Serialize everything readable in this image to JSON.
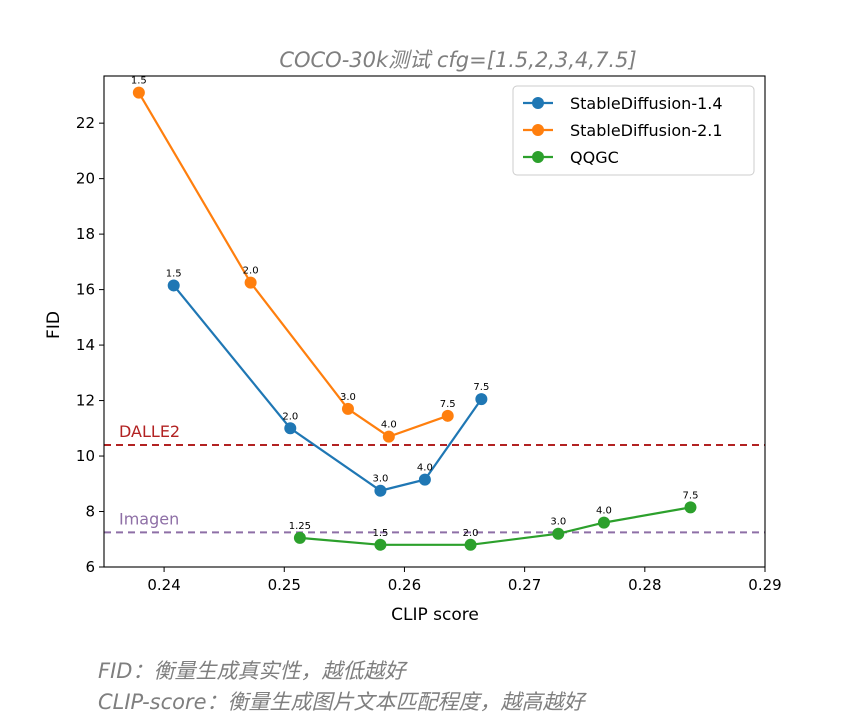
{
  "chart_data": {
    "type": "line",
    "title": "COCO-30k测试  cfg=[1.5,2,3,4,7.5]",
    "xlabel": "CLIP score",
    "ylabel": "FID",
    "xlim": [
      0.235,
      0.29
    ],
    "ylim": [
      6,
      23.7
    ],
    "xticks": [
      0.24,
      0.25,
      0.26,
      0.27,
      0.28,
      0.29
    ],
    "xtick_labels": [
      "0.24",
      "0.25",
      "0.26",
      "0.27",
      "0.28",
      "0.29"
    ],
    "yticks": [
      6,
      8,
      10,
      12,
      14,
      16,
      18,
      20,
      22
    ],
    "ytick_labels": [
      "6",
      "8",
      "10",
      "12",
      "14",
      "16",
      "18",
      "20",
      "22"
    ],
    "grid": false,
    "legend_position": "top-right",
    "series": [
      {
        "name": "StableDiffusion-1.4",
        "color": "#1f77b4",
        "x": [
          0.2408,
          0.2505,
          0.258,
          0.2617,
          0.2664
        ],
        "y": [
          16.15,
          11.0,
          8.75,
          9.15,
          12.05
        ],
        "labels": [
          "1.5",
          "2.0",
          "3.0",
          "4.0",
          "7.5"
        ]
      },
      {
        "name": "StableDiffusion-2.1",
        "color": "#ff7f0e",
        "x": [
          0.2379,
          0.2472,
          0.2553,
          0.2587,
          0.2636
        ],
        "y": [
          23.1,
          16.25,
          11.7,
          10.7,
          11.45
        ],
        "labels": [
          "1.5",
          "2.0",
          "3.0",
          "4.0",
          "7.5"
        ]
      },
      {
        "name": "QQGC",
        "color": "#2ca02c",
        "x": [
          0.2513,
          0.258,
          0.2655,
          0.2728,
          0.2766,
          0.2838
        ],
        "y": [
          7.05,
          6.8,
          6.8,
          7.2,
          7.6,
          8.15
        ],
        "labels": [
          "1.25",
          "1.5",
          "2.0",
          "3.0",
          "4.0",
          "7.5"
        ]
      }
    ],
    "reference_lines": [
      {
        "name": "DALLE2",
        "y": 10.4,
        "color": "#b22222"
      },
      {
        "name": "Imagen",
        "y": 7.25,
        "color": "#8e6fa6"
      }
    ]
  },
  "captions": {
    "line1": "FID：衡量生成真实性，越低越好",
    "line2": "CLIP-score：衡量生成图片文本匹配程度，越高越好"
  }
}
